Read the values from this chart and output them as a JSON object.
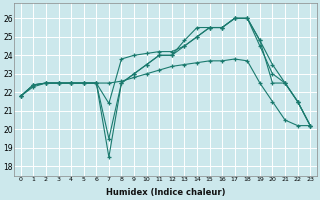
{
  "xlabel": "Humidex (Indice chaleur)",
  "background_color": "#cce8ec",
  "grid_color": "#ffffff",
  "line_color": "#1a7a6e",
  "xlim": [
    -0.5,
    23.5
  ],
  "ylim": [
    17.5,
    26.8
  ],
  "xticks": [
    0,
    1,
    2,
    3,
    4,
    5,
    6,
    7,
    8,
    9,
    10,
    11,
    12,
    13,
    14,
    15,
    16,
    17,
    18,
    19,
    20,
    21,
    22,
    23
  ],
  "yticks": [
    18,
    19,
    20,
    21,
    22,
    23,
    24,
    25,
    26
  ],
  "series": [
    {
      "x": [
        0,
        1,
        2,
        3,
        4,
        5,
        6,
        7,
        8,
        9,
        10,
        11,
        12,
        13,
        14,
        15,
        16,
        17,
        18,
        19,
        20,
        21,
        22,
        23
      ],
      "y": [
        21.8,
        22.4,
        22.5,
        22.5,
        22.5,
        22.5,
        22.5,
        18.5,
        22.5,
        23.0,
        23.5,
        24.0,
        24.0,
        24.8,
        25.5,
        25.5,
        25.5,
        26.0,
        26.0,
        24.8,
        23.5,
        22.5,
        21.5,
        20.2
      ]
    },
    {
      "x": [
        0,
        1,
        2,
        3,
        4,
        5,
        6,
        7,
        8,
        9,
        10,
        11,
        12,
        13,
        14,
        15,
        16,
        17,
        18,
        19,
        20,
        21,
        22,
        23
      ],
      "y": [
        21.8,
        22.4,
        22.5,
        22.5,
        22.5,
        22.5,
        22.5,
        19.5,
        22.5,
        23.0,
        23.5,
        24.0,
        24.0,
        24.5,
        25.0,
        25.5,
        25.5,
        26.0,
        26.0,
        24.5,
        23.0,
        22.5,
        21.5,
        20.2
      ]
    },
    {
      "x": [
        0,
        1,
        2,
        3,
        4,
        5,
        6,
        7,
        8,
        9,
        10,
        11,
        12,
        13,
        14,
        15,
        16,
        17,
        18,
        19,
        20,
        21,
        22,
        23
      ],
      "y": [
        21.8,
        22.4,
        22.5,
        22.5,
        22.5,
        22.5,
        22.5,
        21.4,
        23.8,
        24.0,
        24.1,
        24.2,
        24.2,
        24.5,
        25.0,
        25.5,
        25.5,
        26.0,
        26.0,
        24.8,
        22.5,
        22.5,
        21.5,
        20.2
      ]
    },
    {
      "x": [
        0,
        1,
        2,
        3,
        4,
        5,
        6,
        7,
        8,
        9,
        10,
        11,
        12,
        13,
        14,
        15,
        16,
        17,
        18,
        19,
        20,
        21,
        22,
        23
      ],
      "y": [
        21.8,
        22.3,
        22.5,
        22.5,
        22.5,
        22.5,
        22.5,
        22.5,
        22.6,
        22.8,
        23.0,
        23.2,
        23.4,
        23.5,
        23.6,
        23.7,
        23.7,
        23.8,
        23.7,
        22.5,
        21.5,
        20.5,
        20.2,
        20.2
      ]
    }
  ]
}
